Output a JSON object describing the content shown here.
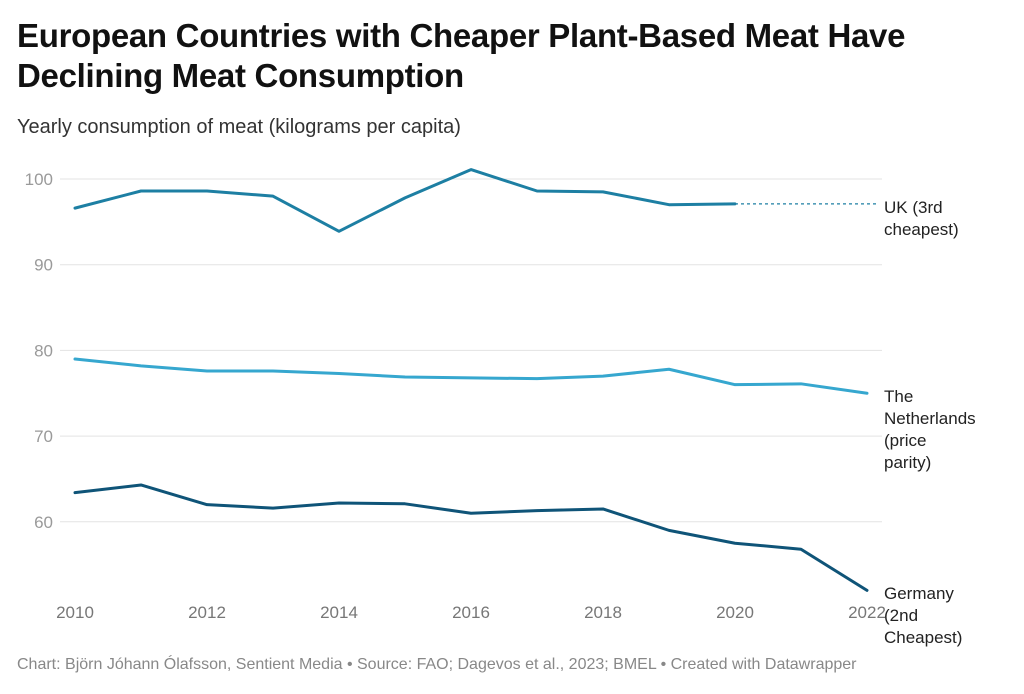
{
  "chart_data": {
    "type": "line",
    "title": "European Countries with Cheaper Plant-Based Meat Have Declining Meat Consumption",
    "subtitle": "Yearly consumption of meat (kilograms per capita)",
    "xlabel": "",
    "ylabel": "",
    "x": [
      2010,
      2011,
      2012,
      2013,
      2014,
      2015,
      2016,
      2017,
      2018,
      2019,
      2020,
      2021,
      2022
    ],
    "xlim": [
      2010,
      2022
    ],
    "ylim": [
      52,
      101
    ],
    "x_ticks": [
      "2010",
      "2012",
      "2014",
      "2016",
      "2018",
      "2020",
      "2022"
    ],
    "y_ticks": [
      "100",
      "90",
      "80",
      "70",
      "60"
    ],
    "grid": true,
    "legend": "inline-right",
    "series": [
      {
        "name": "UK (3rd cheapest)",
        "label_lines": [
          "UK (3rd",
          "cheapest)"
        ],
        "color": "#1d7fa3",
        "values": [
          96.6,
          98.6,
          98.6,
          98.0,
          93.9,
          97.8,
          101.1,
          98.6,
          98.5,
          97.0,
          97.1,
          null,
          null
        ],
        "dashed_extension_to": 2022
      },
      {
        "name": "The Netherlands (price parity)",
        "label_lines": [
          "The",
          "Netherlands",
          "(price",
          "parity)"
        ],
        "color": "#36a7cf",
        "values": [
          79.0,
          78.2,
          77.6,
          77.6,
          77.3,
          76.9,
          76.8,
          76.7,
          77.0,
          77.8,
          76.0,
          76.1,
          75.0
        ]
      },
      {
        "name": "Germany (2nd Cheapest)",
        "label_lines": [
          "Germany",
          "(2nd",
          "Cheapest)"
        ],
        "color": "#0f5478",
        "values": [
          63.4,
          64.3,
          62.0,
          61.6,
          62.2,
          62.1,
          61.0,
          61.3,
          61.5,
          59.0,
          57.5,
          56.8,
          52.0
        ]
      }
    ]
  },
  "footer": "Chart: Björn Jóhann Ólafsson, Sentient Media • Source: FAO; Dagevos et al., 2023; BMEL • Created with Datawrapper"
}
